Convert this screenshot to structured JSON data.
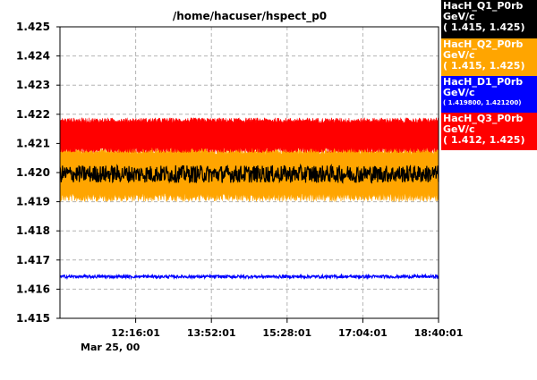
{
  "chart_data": {
    "type": "line",
    "title": "/home/hacuser/hspect_p0",
    "xlabel": "",
    "ylabel": "",
    "ylim": [
      1.415,
      1.425
    ],
    "yticks": [
      "1.415",
      "1.416",
      "1.417",
      "1.418",
      "1.419",
      "1.420",
      "1.421",
      "1.422",
      "1.423",
      "1.424",
      "1.425"
    ],
    "xticks": [
      "12:16:01",
      "13:52:01",
      "15:28:01",
      "17:04:01",
      "18:40:01"
    ],
    "xtick_minutes": [
      96,
      192,
      288,
      384,
      480
    ],
    "xlim_minutes": [
      0,
      480
    ],
    "date_label": "Mar 25, 00",
    "grid": true,
    "series": [
      {
        "name": "HacH_Q1_P0rb",
        "unit": "GeV/c",
        "range": "( 1.415, 1.425)",
        "color": "#000000",
        "mean": 1.41995,
        "spread": 0.0003,
        "fill_band": false
      },
      {
        "name": "HacH_Q2_P0rb",
        "unit": "GeV/c",
        "range": "( 1.415, 1.425)",
        "color": "#ffa500",
        "mean": 1.41995,
        "spread": 0.00095,
        "fill_band": true
      },
      {
        "name": "HacH_D1_P0rb",
        "unit": "GeV/c",
        "range": "( 1.419800, 1.421200)",
        "color": "#0000ff",
        "mean": 1.41643,
        "spread": 5e-05,
        "fill_band": false
      },
      {
        "name": "HacH_Q3_P0rb",
        "unit": "GeV/c",
        "range": "( 1.412, 1.425)",
        "color": "#ff0000",
        "mean": 1.42128,
        "spread": 0.0006,
        "fill_band": true
      }
    ]
  }
}
